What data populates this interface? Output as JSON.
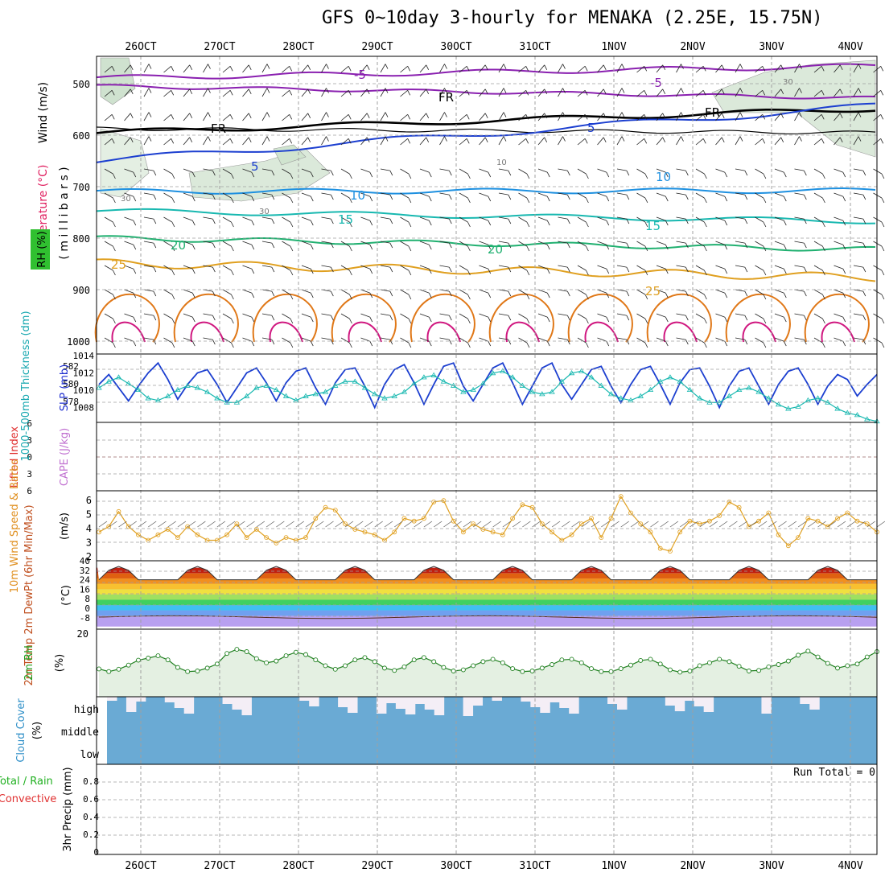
{
  "title": "GFS 0~10day 3-hourly for MENAKA (2.25E, 15.75N)",
  "dates": [
    "26OCT",
    "27OCT",
    "28OCT",
    "29OCT",
    "30OCT",
    "31OCT",
    "1NOV",
    "2NOV",
    "3NOV",
    "4NOV"
  ],
  "colors": {
    "purple": "#8a20b0",
    "black": "#000000",
    "blue": "#1c3fd0",
    "lightblue": "#1e90e0",
    "teal": "#18b8b0",
    "green": "#20b070",
    "orange": "#e0a020",
    "darkorange": "#e07818",
    "magenta": "#d01880",
    "rhfill": "#e4f0e2",
    "cloud": "#6aaad4",
    "grid": "#a0a0a0"
  },
  "panels": {
    "upper": {
      "label_wind": "Wind (m/s)",
      "label_temp": "Temperature (°C)",
      "label_rh": "RH (%)",
      "label_mb": "( m i l l i b a r s )",
      "yticks": [
        "500",
        "600",
        "700",
        "800",
        "900",
        "1000"
      ],
      "contour_labels": [
        "-5",
        "-5",
        "FR",
        "FR",
        "FR",
        "5",
        "5",
        "10",
        "10",
        "15",
        "15",
        "20",
        "20",
        "25",
        "25",
        "30",
        "30",
        "10",
        "30"
      ]
    },
    "slp": {
      "label_slp": "SLP (mb)",
      "label_thick": "1000-500mb Thickness (dm)",
      "slp_ticks": [
        "1014",
        "1012",
        "1010",
        "1008"
      ],
      "thick_ticks": [
        "582",
        "580",
        "578"
      ]
    },
    "cape": {
      "label_li": "Lifted Index",
      "label_cape": "CAPE (J/kg)",
      "yticks": [
        "6",
        "3",
        "0",
        "3",
        "6"
      ]
    },
    "wind10": {
      "label": "10m Wind Speed & Barbs",
      "unit": "(m/s)",
      "yticks": [
        "6",
        "5",
        "4",
        "3",
        "2"
      ]
    },
    "temp2m": {
      "label": "2m Temp 2m DewPt (6hr Min/Max)",
      "unit": "(°C)",
      "yticks": [
        "40",
        "32",
        "24",
        "16",
        "8",
        "0",
        "-8"
      ]
    },
    "rh2m": {
      "label": "2m RH",
      "unit": "(%)",
      "yticks": [
        "20"
      ]
    },
    "cloud": {
      "label": "Cloud Cover",
      "unit": "(%)",
      "levels": [
        "high",
        "middle",
        "low"
      ]
    },
    "precip": {
      "label_total": "Total / Rain",
      "label_conv": "Convective",
      "label_axis": "3hr Precip (mm)",
      "yticks": [
        "0.8",
        "0.6",
        "0.4",
        "0.2",
        "0"
      ],
      "run_total": "Run Total = 0"
    }
  },
  "chart_data": [
    {
      "type": "line",
      "title": "SLP (mb)",
      "ylim": [
        1006,
        1014
      ],
      "values": [
        1010.6,
        1011.8,
        1010.2,
        1008.6,
        1010.4,
        1012.0,
        1013.2,
        1011.2,
        1008.8,
        1010.6,
        1012.0,
        1012.4,
        1010.6,
        1008.4,
        1010.2,
        1012.0,
        1012.6,
        1010.8,
        1008.6,
        1010.8,
        1012.2,
        1012.6,
        1010.2,
        1008.2,
        1010.8,
        1012.4,
        1012.6,
        1010.4,
        1007.8,
        1010.6,
        1012.4,
        1013.0,
        1010.8,
        1008.2,
        1010.6,
        1012.8,
        1013.2,
        1010.4,
        1008.6,
        1010.6,
        1012.6,
        1013.2,
        1010.8,
        1008.2,
        1010.4,
        1012.6,
        1013.2,
        1010.6,
        1008.8,
        1010.6,
        1012.4,
        1012.8,
        1010.4,
        1008.4,
        1010.6,
        1012.4,
        1012.8,
        1010.6,
        1008.2,
        1010.8,
        1012.4,
        1012.6,
        1010.4,
        1007.8,
        1010.4,
        1012.2,
        1012.6,
        1010.4,
        1008.2,
        1010.6,
        1012.2,
        1012.6,
        1010.6,
        1008.2,
        1010.4,
        1011.8,
        1011.2,
        1009.2,
        1010.6,
        1011.8
      ]
    },
    {
      "type": "line",
      "title": "1000-500mb Thickness (dm)",
      "ylim": [
        577,
        583
      ],
      "values": [
        580.0,
        580.6,
        581.0,
        580.4,
        579.8,
        579.0,
        578.8,
        579.2,
        579.8,
        580.2,
        580.0,
        579.6,
        579.0,
        578.6,
        578.6,
        579.2,
        580.0,
        580.2,
        579.8,
        579.2,
        578.8,
        579.2,
        579.4,
        579.6,
        580.2,
        580.6,
        580.6,
        580.0,
        579.4,
        579.0,
        579.2,
        579.6,
        580.4,
        581.0,
        581.2,
        580.6,
        580.2,
        579.6,
        579.8,
        580.4,
        581.4,
        581.6,
        581.0,
        580.2,
        579.6,
        579.4,
        579.6,
        580.6,
        581.4,
        581.6,
        581.0,
        580.2,
        579.4,
        579.0,
        578.8,
        579.2,
        579.8,
        580.6,
        581.0,
        580.6,
        579.8,
        579.0,
        578.6,
        578.6,
        579.2,
        579.8,
        580.0,
        579.6,
        579.0,
        578.4,
        578.0,
        578.2,
        578.8,
        579.0,
        578.6,
        578.0,
        577.6,
        577.4,
        577.0,
        576.8
      ]
    },
    {
      "type": "line",
      "title": "10m Wind Speed",
      "ylim": [
        2,
        6.5
      ],
      "values": [
        3.6,
        4.0,
        5.1,
        4.0,
        3.4,
        3.0,
        3.4,
        3.8,
        3.2,
        4.0,
        3.4,
        3.0,
        3.0,
        3.4,
        4.2,
        3.2,
        3.8,
        3.2,
        2.8,
        3.2,
        3.0,
        3.2,
        4.6,
        5.4,
        5.2,
        4.2,
        3.8,
        3.6,
        3.4,
        3.0,
        3.6,
        4.6,
        4.4,
        4.6,
        5.8,
        5.9,
        4.4,
        3.6,
        4.2,
        3.8,
        3.6,
        3.4,
        4.6,
        5.6,
        5.4,
        4.2,
        3.6,
        3.0,
        3.4,
        4.2,
        4.6,
        3.2,
        4.6,
        6.2,
        5.0,
        4.2,
        3.6,
        2.4,
        2.2,
        3.6,
        4.4,
        4.2,
        4.4,
        4.8,
        5.8,
        5.4,
        4.0,
        4.4,
        5.0,
        3.4,
        2.6,
        3.2,
        4.6,
        4.4,
        4.0,
        4.6,
        5.0,
        4.4,
        4.2,
        3.6
      ]
    },
    {
      "type": "line",
      "title": "2m RH (%)",
      "ylim": [
        0,
        22
      ],
      "values": [
        9.5,
        8.6,
        9.4,
        10.8,
        12.5,
        13.2,
        14.0,
        12.6,
        10.0,
        8.6,
        8.8,
        9.8,
        11.2,
        14.8,
        16.2,
        15.4,
        13.0,
        11.6,
        12.2,
        14.0,
        15.2,
        14.4,
        12.6,
        10.6,
        9.4,
        10.6,
        12.6,
        13.4,
        12.0,
        9.8,
        9.0,
        10.2,
        12.6,
        13.4,
        12.0,
        10.0,
        8.8,
        9.2,
        10.6,
        12.0,
        12.8,
        11.6,
        9.6,
        8.6,
        8.8,
        9.8,
        11.0,
        12.6,
        12.8,
        11.6,
        9.6,
        8.6,
        8.6,
        9.6,
        10.8,
        12.4,
        12.8,
        11.2,
        9.2,
        8.4,
        8.8,
        10.6,
        11.6,
        12.8,
        12.0,
        10.4,
        8.8,
        9.0,
        10.2,
        11.0,
        12.2,
        14.2,
        15.6,
        13.6,
        11.4,
        9.8,
        10.6,
        11.2,
        13.6,
        15.4
      ]
    },
    {
      "type": "area",
      "title": "Cloud Cover (%)",
      "ylim": [
        0,
        100
      ],
      "series": [
        {
          "name": "low",
          "values": [
            100
          ]
        },
        {
          "name": "middle",
          "values": [
            100
          ]
        }
      ]
    }
  ]
}
